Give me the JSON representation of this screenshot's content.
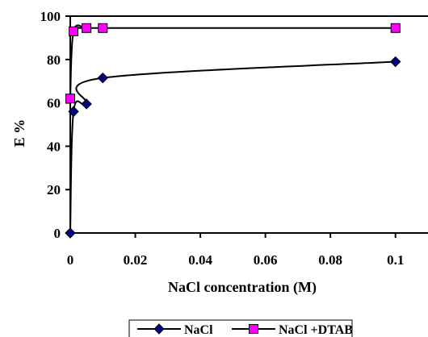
{
  "chart_data": {
    "type": "line",
    "title": "",
    "xlabel": "NaCl concentration (M)",
    "ylabel": "E %",
    "xlim": [
      0,
      0.11
    ],
    "ylim": [
      0,
      100
    ],
    "x_ticks": [
      "0",
      "0.02",
      "0.04",
      "0.06",
      "0.08",
      "0.1"
    ],
    "y_ticks": [
      "0",
      "20",
      "40",
      "60",
      "80",
      "100"
    ],
    "grid": false,
    "legend_position": "bottom-center",
    "series": [
      {
        "name": "NaCl",
        "marker": "diamond",
        "color": "#000080",
        "line_color": "#000000",
        "x": [
          0,
          0.001,
          0.005,
          0.01,
          0.1
        ],
        "y": [
          0,
          56,
          59.5,
          71.5,
          79
        ]
      },
      {
        "name": "NaCl +DTAB",
        "marker": "square",
        "color": "#FF00FF",
        "line_color": "#000000",
        "x": [
          0,
          0.001,
          0.005,
          0.01,
          0.1
        ],
        "y": [
          62,
          93,
          94.5,
          94.5,
          94.5
        ]
      }
    ]
  }
}
